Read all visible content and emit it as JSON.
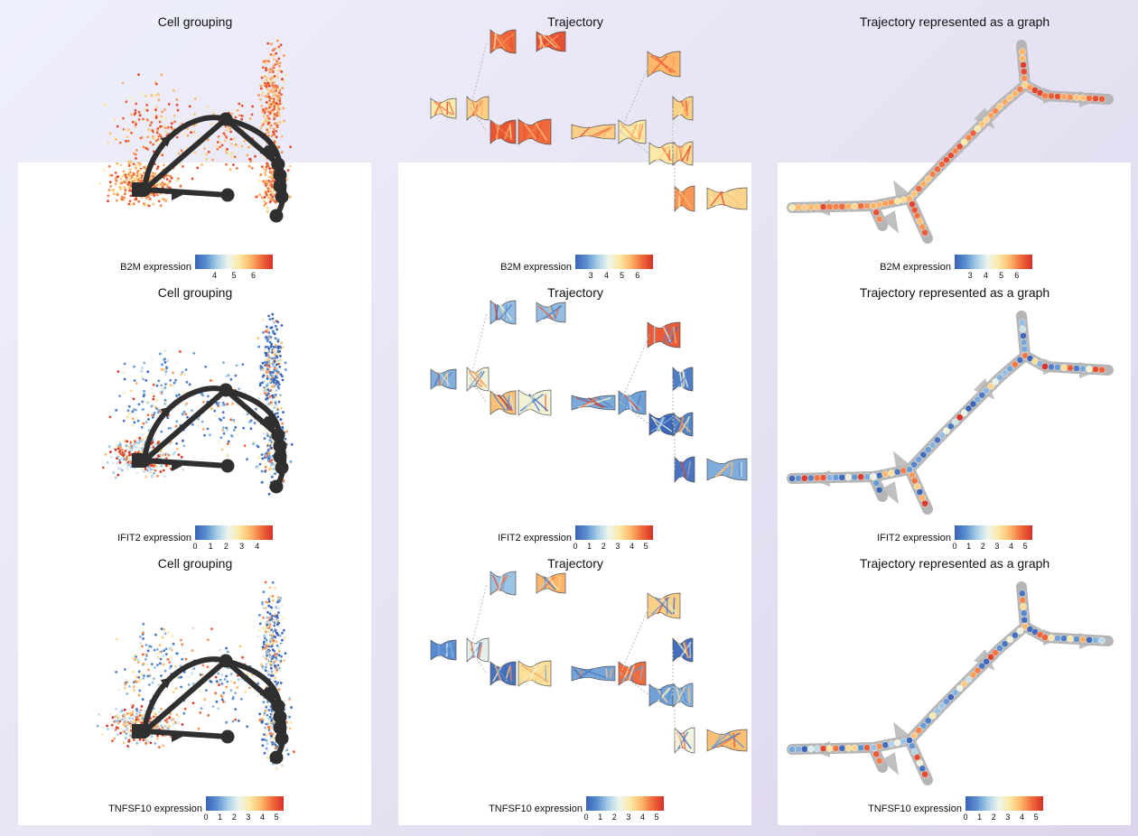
{
  "colormap": [
    "#3b62b6",
    "#5b8fd0",
    "#a9cfe8",
    "#eef6ec",
    "#fbe8a4",
    "#fcb76a",
    "#f16a3c",
    "#d73027"
  ],
  "chart_data": [
    {
      "type": "scatter",
      "row": 0,
      "col": 0,
      "title": "Cell grouping",
      "gene": "B2M",
      "legend_label": "B2M expression",
      "range": [
        3,
        7
      ],
      "ticks": [
        4,
        5,
        6
      ],
      "profile": "high"
    },
    {
      "type": "tree",
      "row": 0,
      "col": 1,
      "title": "Trajectory",
      "gene": "B2M",
      "legend_label": "B2M expression",
      "range": [
        2,
        7
      ],
      "ticks": [
        3,
        4,
        5,
        6
      ],
      "profile": "high"
    },
    {
      "type": "graph",
      "row": 0,
      "col": 2,
      "title": "Trajectory represented as a graph",
      "gene": "B2M",
      "legend_label": "B2M expression",
      "range": [
        2,
        7
      ],
      "ticks": [
        3,
        4,
        5,
        6
      ],
      "profile": "high"
    },
    {
      "type": "scatter",
      "row": 1,
      "col": 0,
      "title": "Cell grouping",
      "gene": "IFIT2",
      "legend_label": "IFIT2 expression",
      "range": [
        0,
        5
      ],
      "ticks": [
        0,
        1,
        2,
        3,
        4
      ],
      "profile": "low"
    },
    {
      "type": "tree",
      "row": 1,
      "col": 1,
      "title": "Trajectory",
      "gene": "IFIT2",
      "legend_label": "IFIT2 expression",
      "range": [
        0,
        5.5
      ],
      "ticks": [
        0,
        1,
        2,
        3,
        4,
        5
      ],
      "profile": "low"
    },
    {
      "type": "graph",
      "row": 1,
      "col": 2,
      "title": "Trajectory represented as a graph",
      "gene": "IFIT2",
      "legend_label": "IFIT2 expression",
      "range": [
        0,
        5.5
      ],
      "ticks": [
        0,
        1,
        2,
        3,
        4,
        5
      ],
      "profile": "low"
    },
    {
      "type": "scatter",
      "row": 2,
      "col": 0,
      "title": "Cell grouping",
      "gene": "TNFSF10",
      "legend_label": "TNFSF10 expression",
      "range": [
        0,
        5.5
      ],
      "ticks": [
        0,
        1,
        2,
        3,
        4,
        5
      ],
      "profile": "mid"
    },
    {
      "type": "tree",
      "row": 2,
      "col": 1,
      "title": "Trajectory",
      "gene": "TNFSF10",
      "legend_label": "TNFSF10 expression",
      "range": [
        0,
        5.5
      ],
      "ticks": [
        0,
        1,
        2,
        3,
        4,
        5
      ],
      "profile": "mid"
    },
    {
      "type": "graph",
      "row": 2,
      "col": 2,
      "title": "Trajectory represented as a graph",
      "gene": "TNFSF10",
      "legend_label": "TNFSF10 expression",
      "range": [
        0,
        5.5
      ],
      "ticks": [
        0,
        1,
        2,
        3,
        4,
        5
      ],
      "profile": "mid"
    }
  ]
}
